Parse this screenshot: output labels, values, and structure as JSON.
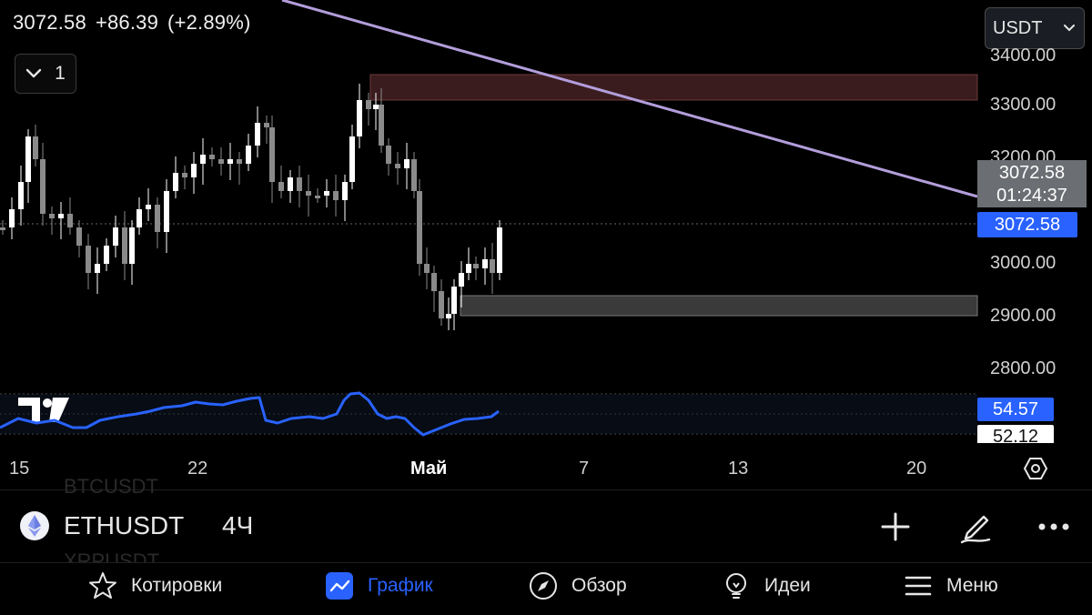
{
  "header": {
    "last_price": "3072.58",
    "change": "+86.39",
    "change_pct": "(+2.89%)"
  },
  "indicator_toggle": {
    "count": "1",
    "icon": "chevron-down-icon"
  },
  "currency": {
    "selected": "USDT",
    "icon": "chevron-down-icon"
  },
  "price_axis": {
    "labels": [
      "3400.00",
      "3300.00",
      "3200.00",
      "3000.00",
      "2900.00",
      "2800.00"
    ],
    "current_price_tag": "3072.58",
    "countdown_tag": "01:24:37",
    "last_price_tag": "3072.58"
  },
  "oscillator": {
    "value_tag": "54.57",
    "signal_tag": "52.12",
    "color": "#2962ff"
  },
  "time_axis": {
    "labels": [
      "15",
      "22",
      "Май",
      "7",
      "13",
      "20"
    ],
    "settings_icon": "hexagon-settings-icon"
  },
  "symbol_bar": {
    "symbol": "ETHUSDT",
    "timeframe": "4Ч",
    "logo_icon": "ethereum-icon",
    "add_icon": "plus-icon",
    "draw_icon": "pencil-icon",
    "more_icon": "more-dots-icon",
    "ghost_above": "BTCUSDT",
    "ghost_below": "XRPUSDT"
  },
  "nav": {
    "items": [
      {
        "label": "Котировки",
        "icon": "star-icon",
        "active": false
      },
      {
        "label": "График",
        "icon": "chart-icon",
        "active": true
      },
      {
        "label": "Обзор",
        "icon": "compass-icon",
        "active": false
      },
      {
        "label": "Идеи",
        "icon": "lightbulb-icon",
        "active": false
      },
      {
        "label": "Меню",
        "icon": "hamburger-menu-icon",
        "active": false
      }
    ]
  },
  "colors": {
    "background": "#000000",
    "accent": "#2962ff",
    "trendline": "#b39ddb",
    "resistance_zone": "#3a1c1e",
    "support_zone": "#3d3d3d",
    "candle": "#ffffff"
  }
}
